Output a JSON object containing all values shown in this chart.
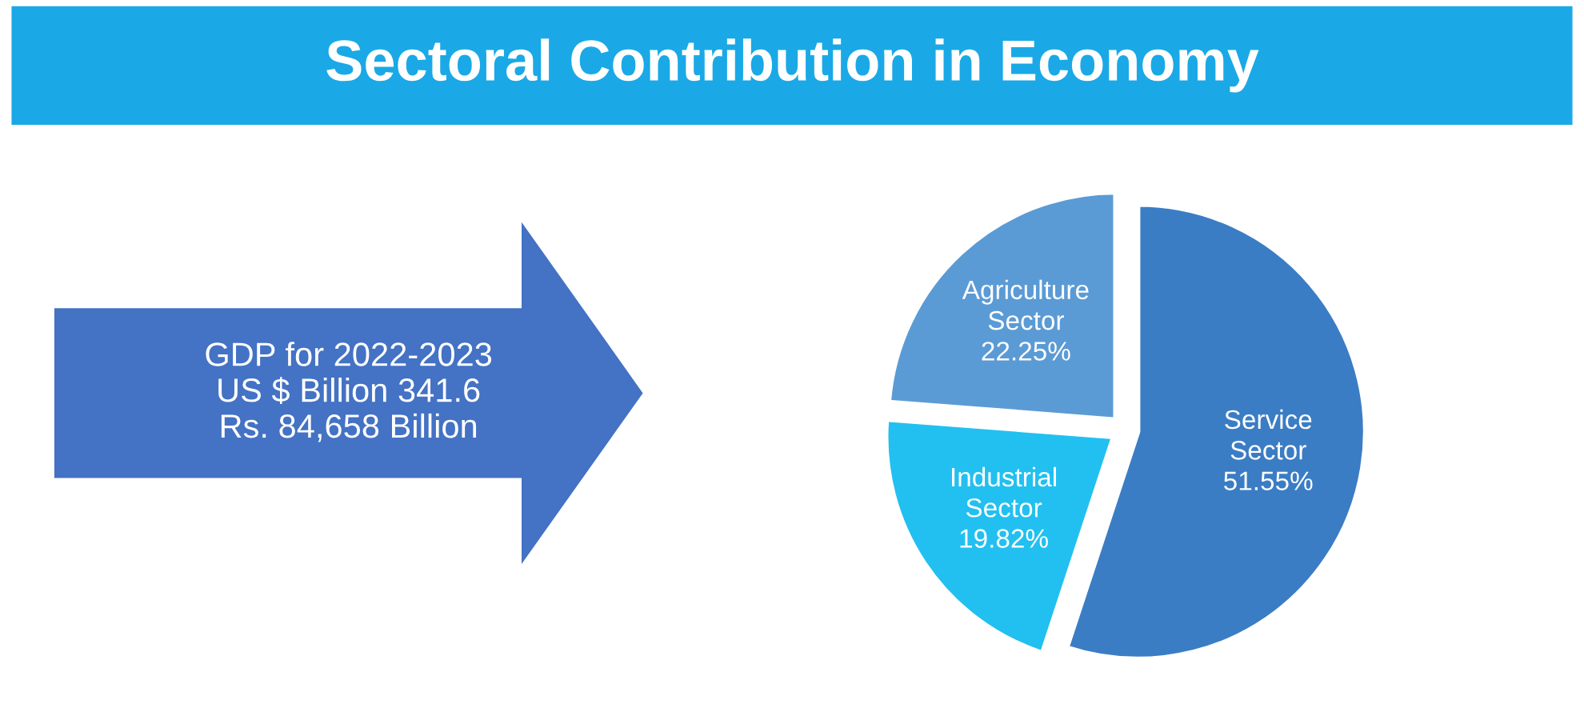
{
  "chart_data": {
    "type": "pie",
    "title": "Sectoral Contribution in Economy",
    "categories": [
      "Agriculture Sector",
      "Service Sector",
      "Industrial Sector"
    ],
    "values": [
      22.25,
      51.55,
      19.82
    ],
    "value_labels": [
      "22.25%",
      "51.55%",
      "19.82%"
    ],
    "colors": [
      "#5b9bd5",
      "#3b7dc4",
      "#22c0f0"
    ],
    "annotations": [
      "GDP for 2022-2023\nUS $ Billion 341.6\nRs. 84,658 Billion"
    ],
    "legend": false
  }
}
